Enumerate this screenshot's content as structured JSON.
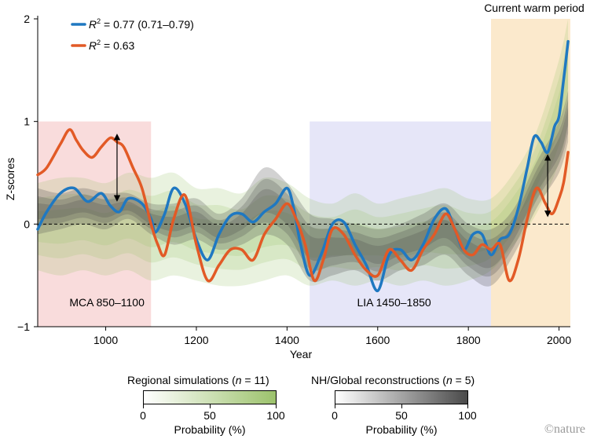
{
  "chart_data": {
    "type": "line",
    "xlabel": "Year",
    "ylabel": "Z-scores",
    "xlim": [
      850,
      2025
    ],
    "ylim": [
      -1,
      2
    ],
    "x_ticks": [
      1000,
      1200,
      1400,
      1600,
      1800,
      2000
    ],
    "y_ticks": [
      -1,
      0,
      1,
      2
    ],
    "zero_line": "dashed",
    "periods": [
      {
        "label": "MCA 850–1100",
        "start": 850,
        "end": 1100,
        "color": "#f9dcdc",
        "ymax": 1.0
      },
      {
        "label": "LIA 1450–1850",
        "start": 1450,
        "end": 1850,
        "color": "#e6e6f8",
        "ymax": 1.0
      },
      {
        "label": "Current warm period",
        "start": 1850,
        "end": 2025,
        "color": "#fbe9cc",
        "ymax": 2.0
      }
    ],
    "legend": {
      "placement": "top-left",
      "entries": [
        {
          "r2_label": "R",
          "r2_sup": "2",
          "text": " = 0.77 (0.71–0.79)",
          "color": "#1f78c1"
        },
        {
          "r2_label": "R",
          "r2_sup": "2",
          "text": " = 0.63",
          "color": "#e25a26"
        }
      ]
    },
    "series": [
      {
        "color": "#1f78c1",
        "x": [
          850,
          870,
          900,
          930,
          960,
          990,
          1010,
          1030,
          1050,
          1080,
          1100,
          1110,
          1130,
          1150,
          1175,
          1200,
          1225,
          1250,
          1275,
          1300,
          1325,
          1350,
          1375,
          1400,
          1415,
          1430,
          1450,
          1475,
          1500,
          1525,
          1550,
          1575,
          1600,
          1625,
          1650,
          1675,
          1700,
          1725,
          1750,
          1770,
          1790,
          1810,
          1830,
          1850,
          1870,
          1890,
          1910,
          1930,
          1945,
          1960,
          1975,
          1990,
          2000,
          2010,
          2020
        ],
        "y": [
          -0.05,
          0.12,
          0.3,
          0.35,
          0.22,
          0.3,
          0.18,
          0.12,
          0.25,
          0.2,
          0.05,
          -0.08,
          0.1,
          0.35,
          0.2,
          -0.15,
          -0.35,
          -0.1,
          0.08,
          0.1,
          0.02,
          0.12,
          0.2,
          0.35,
          0.15,
          -0.2,
          -0.5,
          -0.3,
          0.0,
          0.02,
          -0.2,
          -0.4,
          -0.65,
          -0.3,
          -0.25,
          -0.35,
          -0.2,
          0.05,
          0.15,
          -0.05,
          -0.25,
          -0.1,
          -0.1,
          -0.3,
          -0.15,
          -0.1,
          0.15,
          0.55,
          0.85,
          0.8,
          0.7,
          0.95,
          1.05,
          1.4,
          1.78
        ]
      },
      {
        "color": "#e25a26",
        "x": [
          850,
          870,
          900,
          920,
          935,
          950,
          970,
          990,
          1010,
          1025,
          1040,
          1060,
          1080,
          1100,
          1115,
          1130,
          1150,
          1175,
          1200,
          1225,
          1250,
          1275,
          1300,
          1325,
          1350,
          1375,
          1400,
          1420,
          1440,
          1460,
          1480,
          1500,
          1525,
          1550,
          1575,
          1600,
          1625,
          1650,
          1675,
          1700,
          1725,
          1750,
          1770,
          1790,
          1810,
          1830,
          1850,
          1870,
          1890,
          1910,
          1930,
          1950,
          1970,
          1985,
          2000,
          2010,
          2020
        ],
        "y": [
          0.48,
          0.55,
          0.78,
          0.92,
          0.82,
          0.72,
          0.65,
          0.75,
          0.84,
          0.8,
          0.75,
          0.55,
          0.35,
          0.0,
          -0.2,
          -0.3,
          0.05,
          0.28,
          -0.2,
          -0.55,
          -0.4,
          -0.25,
          -0.25,
          -0.35,
          -0.1,
          0.05,
          0.2,
          0.05,
          -0.2,
          -0.55,
          -0.35,
          -0.05,
          -0.1,
          -0.3,
          -0.45,
          -0.5,
          -0.25,
          -0.35,
          -0.45,
          -0.25,
          -0.1,
          0.1,
          -0.05,
          -0.25,
          -0.3,
          -0.2,
          -0.25,
          -0.2,
          -0.55,
          -0.35,
          0.05,
          0.35,
          0.2,
          0.1,
          0.25,
          0.4,
          0.7
        ]
      }
    ],
    "arrows": [
      {
        "x": 1025,
        "y_from": 0.25,
        "y_to": 0.85
      },
      {
        "x": 1975,
        "y_from": 0.1,
        "y_to": 0.65
      }
    ],
    "envelopes": [
      {
        "name": "Regional simulations",
        "color": "#9cc26c",
        "x": [
          850,
          900,
          950,
          1000,
          1050,
          1100,
          1150,
          1200,
          1250,
          1300,
          1350,
          1400,
          1450,
          1500,
          1550,
          1600,
          1650,
          1700,
          1750,
          1800,
          1850,
          1900,
          1950,
          2000,
          2020
        ],
        "upper": [
          0.4,
          0.45,
          0.45,
          0.4,
          0.5,
          0.45,
          0.5,
          0.35,
          0.35,
          0.3,
          0.45,
          0.4,
          0.25,
          0.2,
          0.3,
          0.2,
          0.25,
          0.3,
          0.35,
          0.25,
          0.25,
          0.5,
          0.9,
          1.6,
          2.0
        ],
        "lower": [
          -0.45,
          -0.5,
          -0.45,
          -0.5,
          -0.45,
          -0.55,
          -0.5,
          -0.55,
          -0.6,
          -0.6,
          -0.55,
          -0.5,
          -0.6,
          -0.55,
          -0.6,
          -0.55,
          -0.6,
          -0.55,
          -0.6,
          -0.55,
          -0.45,
          -0.2,
          0.1,
          0.6,
          1.0
        ]
      },
      {
        "name": "NH/Global reconstructions",
        "color": "#4a4a4a",
        "x": [
          850,
          900,
          950,
          1000,
          1050,
          1100,
          1150,
          1200,
          1250,
          1300,
          1350,
          1400,
          1450,
          1500,
          1550,
          1600,
          1650,
          1700,
          1750,
          1800,
          1850,
          1900,
          1950,
          2000,
          2020
        ],
        "upper": [
          0.35,
          0.3,
          0.35,
          0.3,
          0.3,
          0.2,
          0.2,
          0.25,
          0.1,
          0.25,
          0.55,
          0.4,
          0.1,
          0.05,
          0.0,
          -0.05,
          0.0,
          0.1,
          0.2,
          0.0,
          -0.05,
          0.15,
          0.6,
          1.0,
          1.3
        ],
        "lower": [
          -0.1,
          -0.05,
          0.0,
          -0.05,
          0.05,
          -0.1,
          -0.2,
          -0.15,
          -0.25,
          -0.2,
          -0.1,
          -0.2,
          -0.55,
          -0.5,
          -0.45,
          -0.55,
          -0.45,
          -0.4,
          -0.3,
          -0.5,
          -0.6,
          -0.3,
          0.15,
          0.5,
          0.8
        ]
      }
    ]
  },
  "colorbars": [
    {
      "title_pre": "Regional simulations (",
      "title_n": "n",
      "title_post": " = 11)",
      "ticks": [
        "0",
        "50",
        "100"
      ],
      "label": "Probability (%)",
      "color": "#9cc26c"
    },
    {
      "title_pre": "NH/Global reconstructions (",
      "title_n": "n",
      "title_post": " = 5)",
      "ticks": [
        "0",
        "50",
        "100"
      ],
      "label": "Probability (%)",
      "color": "#4a4a4a"
    }
  ],
  "credit": "©nature"
}
